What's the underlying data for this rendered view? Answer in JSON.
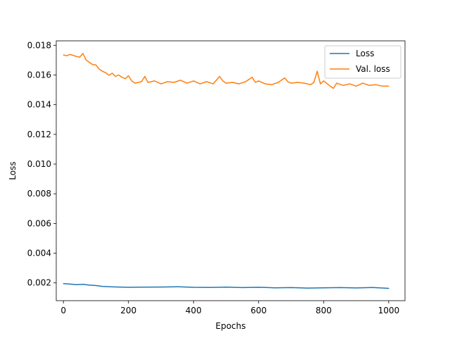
{
  "chart_data": {
    "type": "line",
    "title": "",
    "xlabel": "Epochs",
    "ylabel": "Loss",
    "xlim": [
      -22,
      1050
    ],
    "ylim": [
      0.0008,
      0.0183
    ],
    "xticks": [
      0,
      200,
      400,
      600,
      800,
      1000
    ],
    "xtick_labels": [
      "0",
      "200",
      "400",
      "600",
      "800",
      "1000"
    ],
    "yticks": [
      0.002,
      0.004,
      0.006,
      0.008,
      0.01,
      0.012,
      0.014,
      0.016,
      0.018
    ],
    "ytick_labels": [
      "0.002",
      "0.004",
      "0.006",
      "0.008",
      "0.010",
      "0.012",
      "0.014",
      "0.016",
      "0.018"
    ],
    "grid": false,
    "legend_position": "top-right",
    "series": [
      {
        "name": "Loss",
        "color": "#1f77b4",
        "x": [
          0,
          20,
          40,
          60,
          80,
          100,
          120,
          150,
          200,
          250,
          300,
          350,
          400,
          450,
          500,
          550,
          600,
          650,
          700,
          750,
          800,
          850,
          900,
          950,
          1000
        ],
        "y": [
          0.00195,
          0.00192,
          0.00188,
          0.0019,
          0.00185,
          0.00182,
          0.00176,
          0.00173,
          0.0017,
          0.00171,
          0.00172,
          0.00174,
          0.0017,
          0.00169,
          0.00171,
          0.00168,
          0.0017,
          0.00167,
          0.00168,
          0.00165,
          0.00167,
          0.00168,
          0.00166,
          0.00169,
          0.00163
        ]
      },
      {
        "name": "Val. loss",
        "color": "#ff7f0e",
        "x": [
          0,
          10,
          20,
          30,
          40,
          50,
          60,
          70,
          80,
          90,
          100,
          110,
          120,
          130,
          140,
          150,
          160,
          170,
          180,
          190,
          200,
          210,
          220,
          240,
          250,
          260,
          280,
          300,
          320,
          340,
          360,
          380,
          400,
          420,
          440,
          460,
          480,
          490,
          500,
          520,
          540,
          560,
          580,
          590,
          600,
          620,
          640,
          660,
          680,
          690,
          700,
          720,
          740,
          760,
          770,
          780,
          790,
          800,
          820,
          830,
          840,
          860,
          880,
          900,
          920,
          940,
          960,
          980,
          1000
        ],
        "y": [
          0.01735,
          0.0173,
          0.01738,
          0.01732,
          0.01725,
          0.0172,
          0.01745,
          0.017,
          0.01685,
          0.0167,
          0.01668,
          0.0164,
          0.01625,
          0.01615,
          0.01598,
          0.01612,
          0.0159,
          0.016,
          0.01585,
          0.01575,
          0.01595,
          0.0156,
          0.01545,
          0.01555,
          0.0159,
          0.0155,
          0.0156,
          0.0154,
          0.01555,
          0.0155,
          0.01565,
          0.01545,
          0.0156,
          0.0154,
          0.01555,
          0.0154,
          0.0159,
          0.0156,
          0.01545,
          0.0155,
          0.0154,
          0.01555,
          0.01585,
          0.0155,
          0.0156,
          0.0154,
          0.01535,
          0.0155,
          0.0158,
          0.01555,
          0.01545,
          0.0155,
          0.01545,
          0.01535,
          0.0155,
          0.01625,
          0.0154,
          0.0156,
          0.01525,
          0.0151,
          0.01545,
          0.0153,
          0.0154,
          0.01525,
          0.01545,
          0.0153,
          0.01535,
          0.01525,
          0.01525
        ]
      }
    ]
  }
}
